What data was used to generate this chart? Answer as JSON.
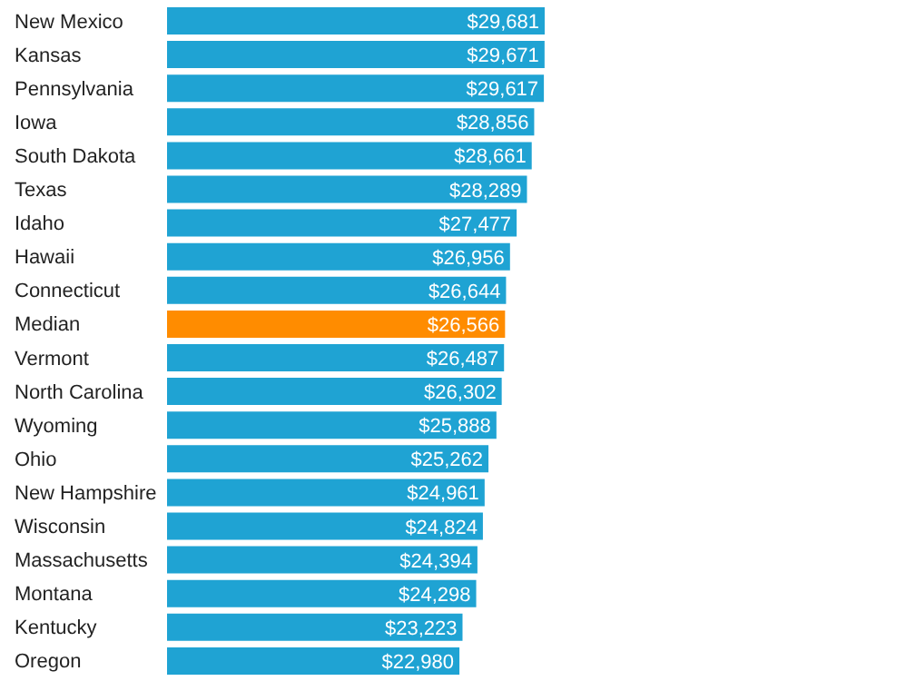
{
  "chart_data": {
    "type": "bar",
    "orientation": "horizontal",
    "categories": [
      "New Mexico",
      "Kansas",
      "Pennsylvania",
      "Iowa",
      "South Dakota",
      "Texas",
      "Idaho",
      "Hawaii",
      "Connecticut",
      "Median",
      "Vermont",
      "North Carolina",
      "Wyoming",
      "Ohio",
      "New Hampshire",
      "Wisconsin",
      "Massachusetts",
      "Montana",
      "Kentucky",
      "Oregon"
    ],
    "values": [
      29681,
      29671,
      29617,
      28856,
      28661,
      28289,
      27477,
      26956,
      26644,
      26566,
      26487,
      26302,
      25888,
      25262,
      24961,
      24824,
      24394,
      24298,
      23223,
      22980
    ],
    "colors": [
      "#1fa3d3",
      "#1fa3d3",
      "#1fa3d3",
      "#1fa3d3",
      "#1fa3d3",
      "#1fa3d3",
      "#1fa3d3",
      "#1fa3d3",
      "#1fa3d3",
      "#ff8c00",
      "#1fa3d3",
      "#1fa3d3",
      "#1fa3d3",
      "#1fa3d3",
      "#1fa3d3",
      "#1fa3d3",
      "#1fa3d3",
      "#1fa3d3",
      "#1fa3d3",
      "#1fa3d3"
    ],
    "value_labels": [
      "$29,681",
      "$29,671",
      "$29,617",
      "$28,856",
      "$28,661",
      "$28,289",
      "$27,477",
      "$26,956",
      "$26,644",
      "$26,566",
      "$26,487",
      "$26,302",
      "$25,888",
      "$25,262",
      "$24,961",
      "$24,824",
      "$24,394",
      "$24,298",
      "$23,223",
      "$22,980"
    ],
    "grid": false,
    "legend": false
  }
}
